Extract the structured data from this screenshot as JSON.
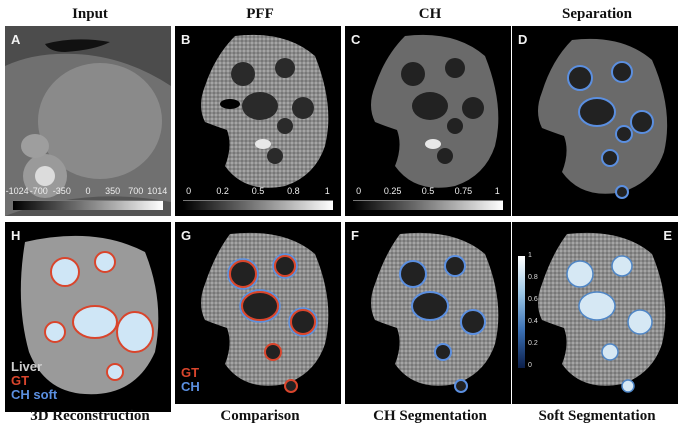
{
  "columns": {
    "input": "Input",
    "pff": "PFF",
    "ch": "CH",
    "separation": "Separation"
  },
  "bottom_titles": {
    "reconstruction": "3D Reconstruction",
    "comparison": "Comparison",
    "ch_segmentation": "CH Segmentation",
    "soft_segmentation": "Soft Segmentation"
  },
  "panels": {
    "A": "A",
    "B": "B",
    "C": "C",
    "D": "D",
    "H": "H",
    "G": "G",
    "F": "F",
    "E": "E"
  },
  "colorbars": {
    "input_ticks": [
      "-1024",
      "-700",
      "-350",
      "0",
      "350",
      "700",
      "1014"
    ],
    "pff_ticks": [
      "0",
      "0.2",
      "0.5",
      "0.8",
      "1"
    ],
    "ch_ticks": [
      "0",
      "0.25",
      "0.5",
      "0.75",
      "1"
    ],
    "soft_ticks": [
      "1",
      "0.8",
      "0.6",
      "0.4",
      "0.2",
      "0"
    ]
  },
  "legends": {
    "h_liver": "Liver",
    "h_gt": "GT",
    "h_ch_soft": "CH soft",
    "g_gt": "GT",
    "g_ch": "CH"
  },
  "colors": {
    "gt": "#d9452c",
    "ch": "#5b8fe0",
    "liver": "#cfcfcf"
  }
}
